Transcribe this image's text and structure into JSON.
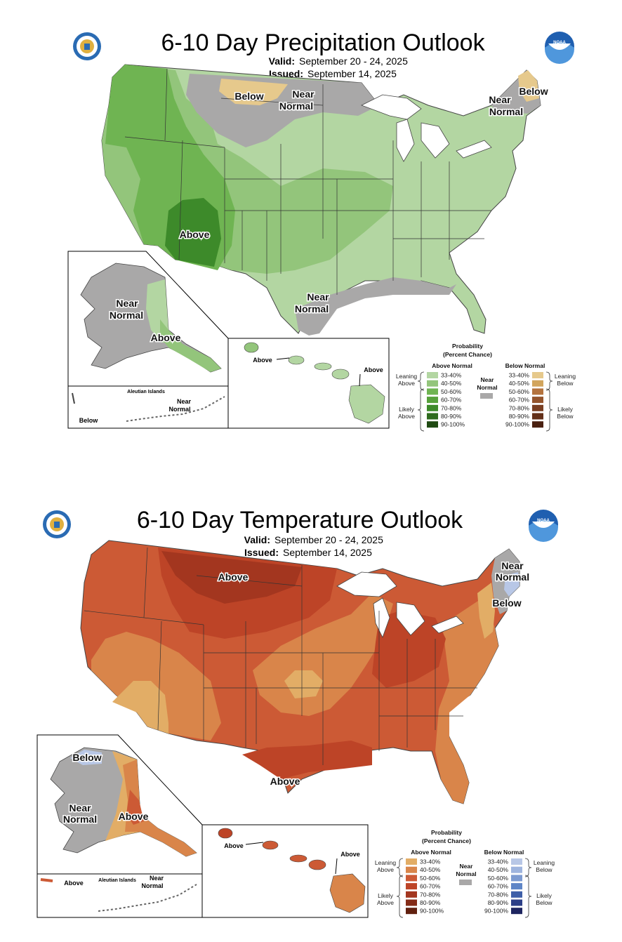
{
  "colors": {
    "above": [
      "#b3d6a2",
      "#93c57b",
      "#6fb452",
      "#56a13b",
      "#3d8a2a",
      "#2e6b1e",
      "#1f4a12"
    ],
    "below_p": [
      "#e6c98c",
      "#d2a55d",
      "#b4733e",
      "#94542c",
      "#7a3f22",
      "#632f18",
      "#4a2010"
    ],
    "t_above": [
      "#e2ad66",
      "#d9854a",
      "#cc5a35",
      "#bd4427",
      "#a3361f",
      "#842b17",
      "#61200f"
    ],
    "t_below": [
      "#b8c7e6",
      "#9eb4de",
      "#7d9bd1",
      "#5f86c7",
      "#3f5fa8",
      "#2c3f87",
      "#1e2560"
    ],
    "near_normal": "#a9a8a8"
  },
  "precip": {
    "title": "6-10 Day Precipitation Outlook",
    "valid_label": "Valid:",
    "valid_value": "September 20 - 24, 2025",
    "issued_label": "Issued:",
    "issued_value": "September 14, 2025",
    "labels": {
      "below_north": "Below",
      "near_normal_north_1": "Near",
      "near_normal_north_2": "Normal",
      "below_ne": "Below",
      "near_normal_ne_1": "Near",
      "near_normal_ne_2": "Normal",
      "above_sw": "Above",
      "near_normal_tx_1": "Near",
      "near_normal_tx_2": "Normal",
      "ak_near_1": "Near",
      "ak_near_2": "Normal",
      "ak_above": "Above",
      "aleutian_title": "Aleutian Islands",
      "aleutian_near_1": "Near",
      "aleutian_near_2": "Normal",
      "aleutian_below": "Below",
      "hi_above_1": "Above",
      "hi_above_2": "Above"
    }
  },
  "temp": {
    "title": "6-10 Day Temperature Outlook",
    "valid_label": "Valid:",
    "valid_value": "September 20 - 24, 2025",
    "issued_label": "Issued:",
    "issued_value": "September 14, 2025",
    "labels": {
      "above_north": "Above",
      "near_ne_1": "Near",
      "near_ne_2": "Normal",
      "below_ne": "Below",
      "above_tx": "Above",
      "ak_below": "Below",
      "ak_near_1": "Near",
      "ak_near_2": "Normal",
      "ak_above": "Above",
      "aleutian_above": "Above",
      "aleutian_title": "Aleutian Islands",
      "aleutian_near_1": "Near",
      "aleutian_near_2": "Normal",
      "hi_above_1": "Above",
      "hi_above_2": "Above"
    }
  },
  "legend": {
    "title_1": "Probability",
    "title_2": "(Percent Chance)",
    "above_header": "Above Normal",
    "below_header": "Below Normal",
    "near_1": "Near",
    "near_2": "Normal",
    "leaning_above_1": "Leaning",
    "leaning_above_2": "Above",
    "likely_above_1": "Likely",
    "likely_above_2": "Above",
    "leaning_below_1": "Leaning",
    "leaning_below_2": "Below",
    "likely_below_1": "Likely",
    "likely_below_2": "Below",
    "ranges": [
      "33-40%",
      "40-50%",
      "50-60%",
      "60-70%",
      "70-80%",
      "80-90%",
      "90-100%"
    ]
  }
}
